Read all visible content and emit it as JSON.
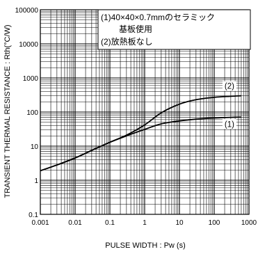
{
  "chart_data": {
    "type": "line",
    "xlabel": "PULSE WIDTH : Pw (s)",
    "ylabel": "TRANSIENT THERMAL RESISTANCE : Rth(°C/W)",
    "x_scale": "log",
    "y_scale": "log",
    "xlim": [
      0.001,
      1000
    ],
    "ylim": [
      0.1,
      100000
    ],
    "x_tick_labels": [
      "0.001",
      "0.01",
      "0.1",
      "1",
      "10",
      "100",
      "1000"
    ],
    "y_tick_labels": [
      "100000",
      "10000",
      "1000",
      "100",
      "10",
      "1",
      "0.1"
    ],
    "grid": true,
    "annotations": [
      "(1)40×40×0.7mmのセラミック",
      "基板使用",
      "(2)放熱板なし"
    ],
    "series": [
      {
        "name": "(1)",
        "x": [
          0.001,
          0.003,
          0.01,
          0.03,
          0.1,
          0.3,
          1,
          3,
          10,
          30,
          100,
          300,
          600
        ],
        "y": [
          1.9,
          2.8,
          4.5,
          7.5,
          13,
          20,
          31,
          45,
          55,
          62,
          67,
          70,
          71
        ]
      },
      {
        "name": "(2)",
        "x": [
          0.001,
          0.003,
          0.01,
          0.03,
          0.1,
          0.3,
          1,
          3,
          10,
          30,
          100,
          300,
          600
        ],
        "y": [
          1.9,
          2.8,
          4.5,
          7.5,
          13,
          21,
          42,
          95,
          170,
          230,
          270,
          290,
          300
        ]
      }
    ]
  }
}
